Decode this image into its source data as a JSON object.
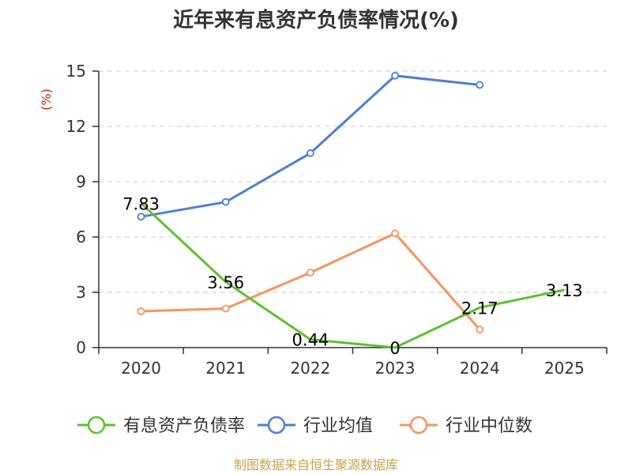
{
  "chart_data": {
    "type": "line",
    "title": "近年来有息资产负债率情况(%)",
    "ylabel": "(%)",
    "categories": [
      "2020",
      "2021",
      "2022",
      "2023",
      "2024",
      "2025"
    ],
    "y_ticks": [
      "0",
      "3",
      "6",
      "9",
      "12",
      "15"
    ],
    "ylim": [
      0,
      15
    ],
    "grid": true,
    "legend_position": "bottom",
    "series": [
      {
        "name": "有息资产负债率",
        "color": "#5cc12f",
        "values": [
          7.83,
          3.56,
          0.44,
          0,
          2.17,
          3.13
        ],
        "labels": [
          "7.83",
          "3.56",
          "0.44",
          "0",
          "2.17",
          "3.13"
        ]
      },
      {
        "name": "行业均值",
        "color": "#4d7fd6",
        "values": [
          7.1,
          7.9,
          10.55,
          14.75,
          14.25,
          null
        ]
      },
      {
        "name": "行业中位数",
        "color": "#f79361",
        "values": [
          1.97,
          2.12,
          4.07,
          6.2,
          0.98,
          null
        ]
      }
    ]
  },
  "source": "制图数据来自恒生聚源数据库"
}
